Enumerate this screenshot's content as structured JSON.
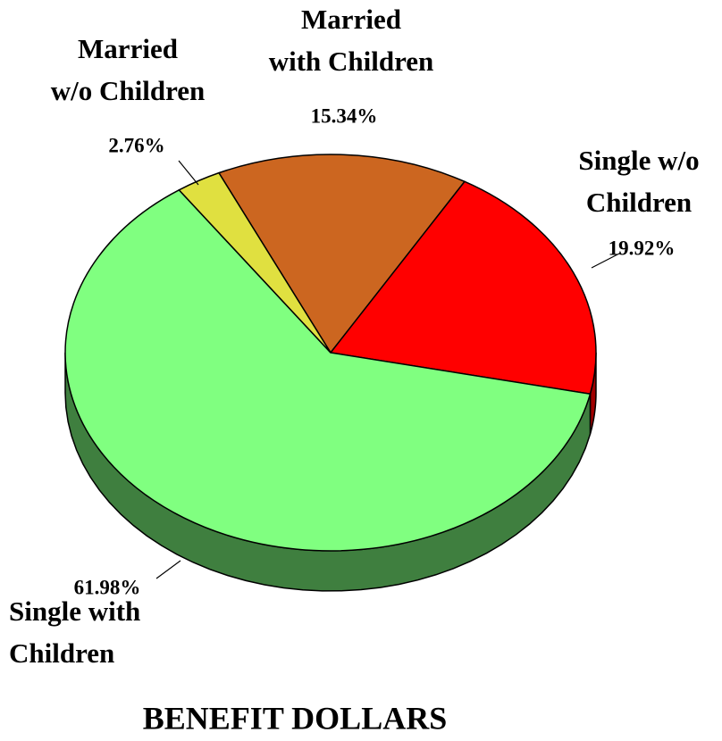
{
  "chart_data": {
    "type": "pie",
    "title": "BENEFIT DOLLARS",
    "categories": [
      "Married\nwith Children",
      "Single w/o\nChildren",
      "Single with\nChildren",
      "Married\nw/o Children"
    ],
    "values": [
      15.34,
      19.92,
      61.98,
      2.76
    ],
    "value_labels": [
      "15.34%",
      "19.92%",
      "61.98%",
      "2.76%"
    ],
    "colors": [
      "#cc6620",
      "#ff0000",
      "#80ff80",
      "#e0e040"
    ],
    "side_colors": [
      "#8a4010",
      "#a00000",
      "#3f7f3f",
      "#9a9a20"
    ]
  }
}
